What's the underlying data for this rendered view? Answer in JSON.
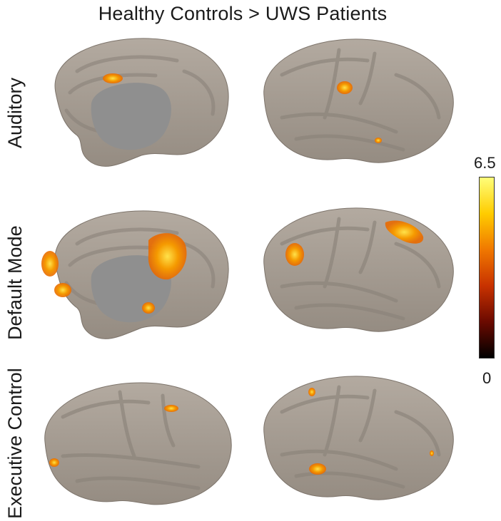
{
  "title": "Healthy Controls > UWS Patients",
  "rows": [
    {
      "label": "Auditory"
    },
    {
      "label": "Default Mode"
    },
    {
      "label": "Executive Control"
    }
  ],
  "colorbar": {
    "max_label": "6.5",
    "min_label": "0",
    "colors": [
      "#000000",
      "#6b0a00",
      "#c83200",
      "#f07800",
      "#ffcc00",
      "#ffff7a"
    ]
  },
  "colors": {
    "cortex": "#a39a90",
    "sulci": "#8b8279",
    "medial_wall": "#8f8f8f",
    "activation_low": "#f07a00",
    "activation_high": "#ffd200"
  }
}
